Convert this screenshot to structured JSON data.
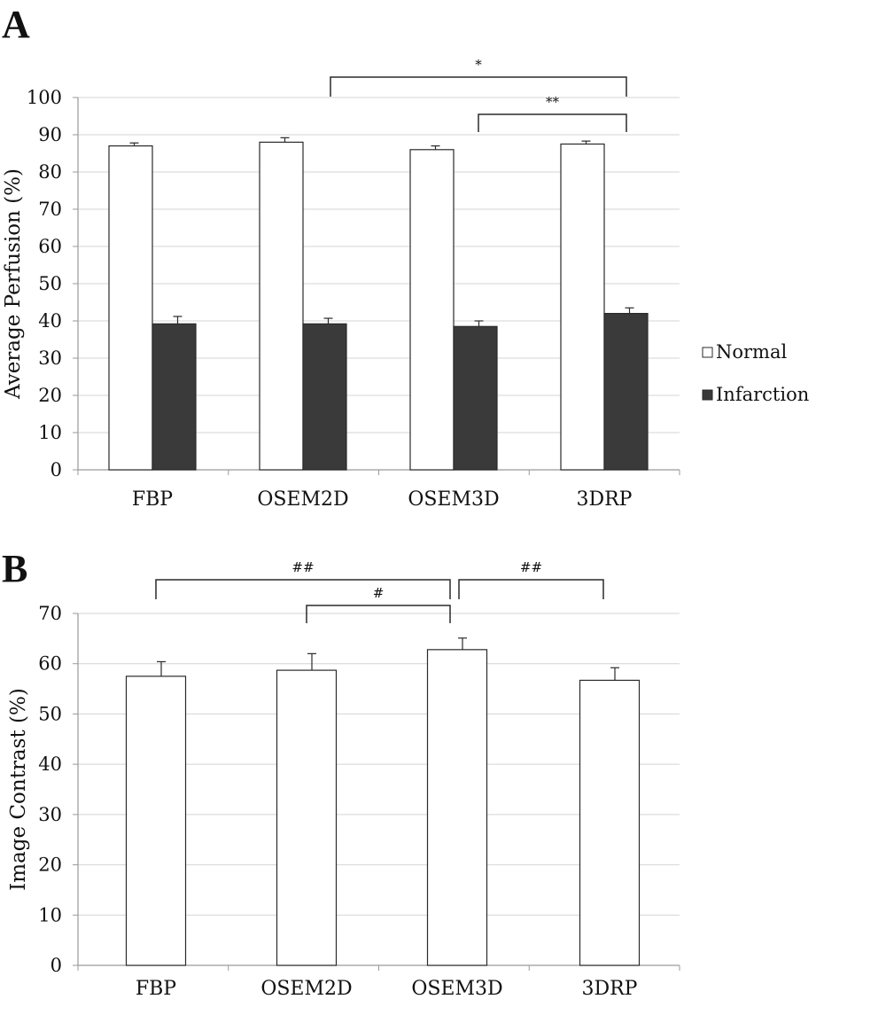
{
  "figure": {
    "panel_labels": [
      "A",
      "B"
    ]
  },
  "chart_data": [
    {
      "type": "bar",
      "panel": "A",
      "categories": [
        "FBP",
        "OSEM2D",
        "OSEM3D",
        "3DRP"
      ],
      "series": [
        {
          "name": "Normal",
          "values": [
            87,
            88,
            86,
            87.5
          ],
          "errors": [
            0.8,
            1.2,
            1.0,
            0.8
          ],
          "color": "#ffffff"
        },
        {
          "name": "Infarction",
          "values": [
            39.2,
            39.2,
            38.5,
            42
          ],
          "errors": [
            2.0,
            1.5,
            1.5,
            1.5
          ],
          "color": "#3a3a3a"
        }
      ],
      "title": "",
      "xlabel": "",
      "ylabel": "Average Perfusion (%)",
      "ylim": [
        0,
        100
      ],
      "yticks": [
        0,
        10,
        20,
        30,
        40,
        50,
        60,
        70,
        80,
        90,
        100
      ],
      "grid": true,
      "legend": "right",
      "annotations": [
        {
          "from": "OSEM2D",
          "to": "3DRP",
          "label": "*"
        },
        {
          "from": "OSEM3D",
          "to": "3DRP",
          "label": "**"
        }
      ]
    },
    {
      "type": "bar",
      "panel": "B",
      "categories": [
        "FBP",
        "OSEM2D",
        "OSEM3D",
        "3DRP"
      ],
      "series": [
        {
          "values": [
            57.5,
            58.7,
            62.8,
            56.7
          ],
          "errors": [
            2.9,
            3.3,
            2.3,
            2.5
          ],
          "color": "#ffffff"
        }
      ],
      "title": "",
      "xlabel": "",
      "ylabel": "Image Contrast (%)",
      "ylim": [
        0,
        70
      ],
      "yticks": [
        0,
        10,
        20,
        30,
        40,
        50,
        60,
        70
      ],
      "grid": true,
      "annotations": [
        {
          "from": "FBP",
          "to": "OSEM3D",
          "label": "##"
        },
        {
          "from": "OSEM2D",
          "to": "OSEM3D",
          "label": "#"
        },
        {
          "from": "OSEM3D",
          "to": "3DRP",
          "label": "##"
        }
      ]
    }
  ]
}
